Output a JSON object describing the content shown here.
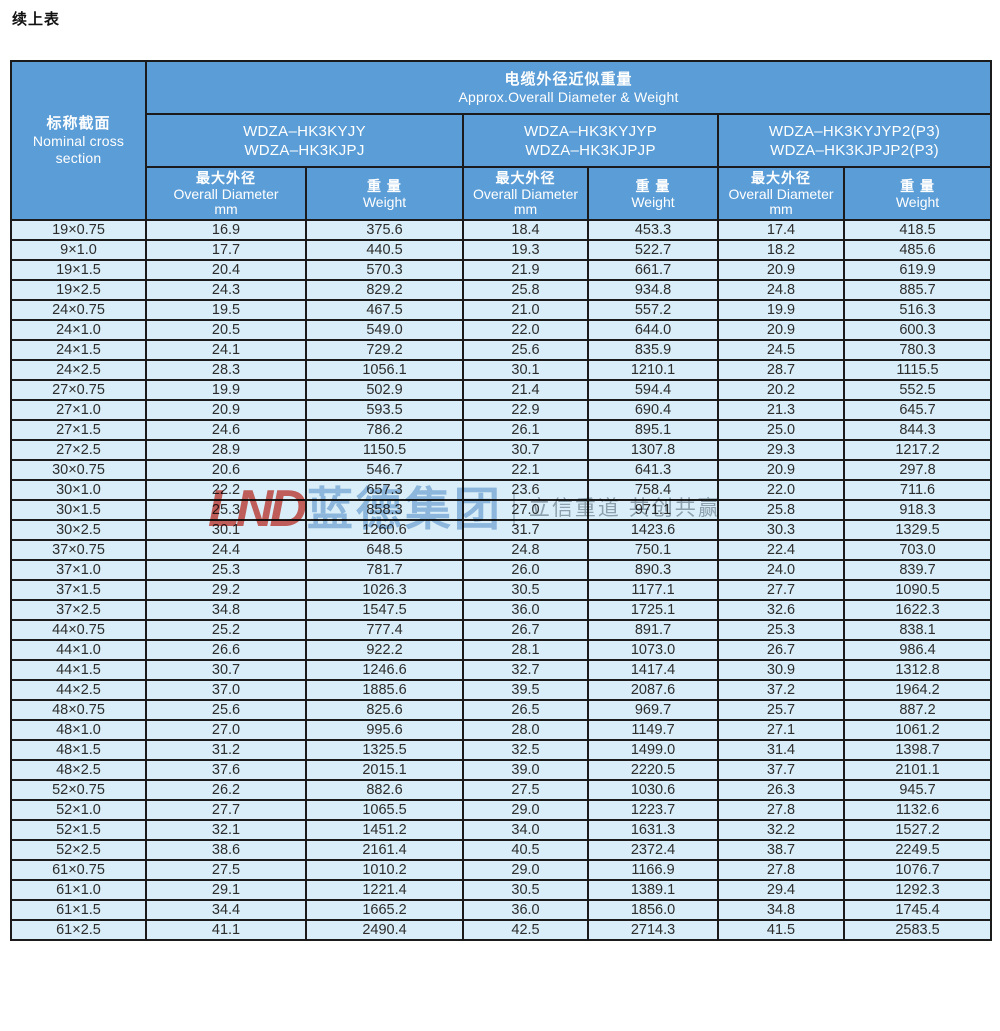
{
  "page": {
    "title": "续上表"
  },
  "colors": {
    "header_bg": "#5b9dd6",
    "row_bg": "#d9eef8",
    "border": "#1b1b1b",
    "watermark_logo": "#d63026",
    "watermark_brand": "#4987c5"
  },
  "table": {
    "corner": {
      "zh": "标称截面",
      "en1": "Nominal cross",
      "en2": "section"
    },
    "title_zh": "电缆外径近似重量",
    "title_en": "Approx.Overall Diameter & Weight",
    "groups": [
      {
        "line1": "WDZA–HK3KYJY",
        "line2": "WDZA–HK3KJPJ"
      },
      {
        "line1": "WDZA–HK3KYJYP",
        "line2": "WDZA–HK3KJPJP"
      },
      {
        "line1": "WDZA–HK3KYJYP2(P3)",
        "line2": "WDZA–HK3KJPJP2(P3)"
      }
    ],
    "subheader": {
      "diameter_zh": "最大外径",
      "diameter_en": "Overall Diameter",
      "diameter_unit": "mm",
      "weight_zh": "重 量",
      "weight_en": "Weight"
    },
    "rows": [
      [
        "19×0.75",
        "16.9",
        "375.6",
        "18.4",
        "453.3",
        "17.4",
        "418.5"
      ],
      [
        "9×1.0",
        "17.7",
        "440.5",
        "19.3",
        "522.7",
        "18.2",
        "485.6"
      ],
      [
        "19×1.5",
        "20.4",
        "570.3",
        "21.9",
        "661.7",
        "20.9",
        "619.9"
      ],
      [
        "19×2.5",
        "24.3",
        "829.2",
        "25.8",
        "934.8",
        "24.8",
        "885.7"
      ],
      [
        "24×0.75",
        "19.5",
        "467.5",
        "21.0",
        "557.2",
        "19.9",
        "516.3"
      ],
      [
        "24×1.0",
        "20.5",
        "549.0",
        "22.0",
        "644.0",
        "20.9",
        "600.3"
      ],
      [
        "24×1.5",
        "24.1",
        "729.2",
        "25.6",
        "835.9",
        "24.5",
        "780.3"
      ],
      [
        "24×2.5",
        "28.3",
        "1056.1",
        "30.1",
        "1210.1",
        "28.7",
        "1115.5"
      ],
      [
        "27×0.75",
        "19.9",
        "502.9",
        "21.4",
        "594.4",
        "20.2",
        "552.5"
      ],
      [
        "27×1.0",
        "20.9",
        "593.5",
        "22.9",
        "690.4",
        "21.3",
        "645.7"
      ],
      [
        "27×1.5",
        "24.6",
        "786.2",
        "26.1",
        "895.1",
        "25.0",
        "844.3"
      ],
      [
        "27×2.5",
        "28.9",
        "1150.5",
        "30.7",
        "1307.8",
        "29.3",
        "1217.2"
      ],
      [
        "30×0.75",
        "20.6",
        "546.7",
        "22.1",
        "641.3",
        "20.9",
        "297.8"
      ],
      [
        "30×1.0",
        "22.2",
        "657.3",
        "23.6",
        "758.4",
        "22.0",
        "711.6"
      ],
      [
        "30×1.5",
        "25.3",
        "858.3",
        "27.0",
        "971.1",
        "25.8",
        "918.3"
      ],
      [
        "30×2.5",
        "30.1",
        "1260.6",
        "31.7",
        "1423.6",
        "30.3",
        "1329.5"
      ],
      [
        "37×0.75",
        "24.4",
        "648.5",
        "24.8",
        "750.1",
        "22.4",
        "703.0"
      ],
      [
        "37×1.0",
        "25.3",
        "781.7",
        "26.0",
        "890.3",
        "24.0",
        "839.7"
      ],
      [
        "37×1.5",
        "29.2",
        "1026.3",
        "30.5",
        "1177.1",
        "27.7",
        "1090.5"
      ],
      [
        "37×2.5",
        "34.8",
        "1547.5",
        "36.0",
        "1725.1",
        "32.6",
        "1622.3"
      ],
      [
        "44×0.75",
        "25.2",
        "777.4",
        "26.7",
        "891.7",
        "25.3",
        "838.1"
      ],
      [
        "44×1.0",
        "26.6",
        "922.2",
        "28.1",
        "1073.0",
        "26.7",
        "986.4"
      ],
      [
        "44×1.5",
        "30.7",
        "1246.6",
        "32.7",
        "1417.4",
        "30.9",
        "1312.8"
      ],
      [
        "44×2.5",
        "37.0",
        "1885.6",
        "39.5",
        "2087.6",
        "37.2",
        "1964.2"
      ],
      [
        "48×0.75",
        "25.6",
        "825.6",
        "26.5",
        "969.7",
        "25.7",
        "887.2"
      ],
      [
        "48×1.0",
        "27.0",
        "995.6",
        "28.0",
        "1149.7",
        "27.1",
        "1061.2"
      ],
      [
        "48×1.5",
        "31.2",
        "1325.5",
        "32.5",
        "1499.0",
        "31.4",
        "1398.7"
      ],
      [
        "48×2.5",
        "37.6",
        "2015.1",
        "39.0",
        "2220.5",
        "37.7",
        "2101.1"
      ],
      [
        "52×0.75",
        "26.2",
        "882.6",
        "27.5",
        "1030.6",
        "26.3",
        "945.7"
      ],
      [
        "52×1.0",
        "27.7",
        "1065.5",
        "29.0",
        "1223.7",
        "27.8",
        "1132.6"
      ],
      [
        "52×1.5",
        "32.1",
        "1451.2",
        "34.0",
        "1631.3",
        "32.2",
        "1527.2"
      ],
      [
        "52×2.5",
        "38.6",
        "2161.4",
        "40.5",
        "2372.4",
        "38.7",
        "2249.5"
      ],
      [
        "61×0.75",
        "27.5",
        "1010.2",
        "29.0",
        "1166.9",
        "27.8",
        "1076.7"
      ],
      [
        "61×1.0",
        "29.1",
        "1221.4",
        "30.5",
        "1389.1",
        "29.4",
        "1292.3"
      ],
      [
        "61×1.5",
        "34.4",
        "1665.2",
        "36.0",
        "1856.0",
        "34.8",
        "1745.4"
      ],
      [
        "61×2.5",
        "41.1",
        "2490.4",
        "42.5",
        "2714.3",
        "41.5",
        "2583.5"
      ]
    ]
  },
  "watermark": {
    "logo": "LND",
    "brand": "蓝德集团",
    "slogan": "立信重道 共创共赢"
  }
}
